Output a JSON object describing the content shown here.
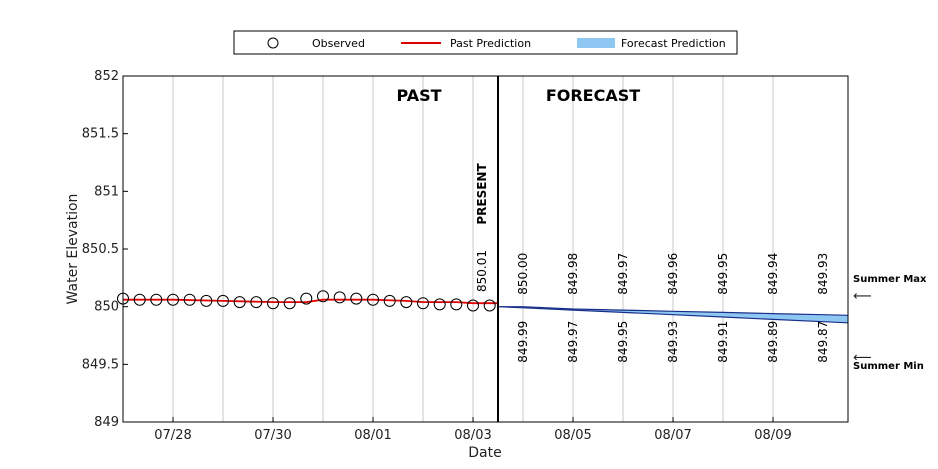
{
  "chart_data": {
    "type": "line",
    "xlabel": "Date",
    "ylabel": "Water Elevation",
    "ylim": [
      849,
      852
    ],
    "yticks": [
      "849",
      "849.5",
      "850",
      "850.5",
      "851",
      "851.5",
      "852"
    ],
    "xlim": [
      "07/27",
      "08/10 12:00"
    ],
    "xticks": [
      "07/28",
      "07/30",
      "08/01",
      "08/03",
      "08/05",
      "08/07",
      "08/09"
    ],
    "grid": "vertical",
    "legend": {
      "placement": "top",
      "entries": [
        {
          "label": "Observed",
          "marker": "open-circle"
        },
        {
          "label": "Past Prediction",
          "marker": "line",
          "color": "#e00000"
        },
        {
          "label": "Forecast Prediction",
          "marker": "band",
          "color": "#8ec8f2"
        }
      ]
    },
    "annotations": {
      "past": "PAST",
      "forecast": "FORECAST",
      "present": "PRESENT",
      "present_date": "08/03 12:00",
      "present_value": "850.01"
    },
    "observed": {
      "x": [
        "07/27 00:00",
        "07/27 08:00",
        "07/27 16:00",
        "07/28 00:00",
        "07/28 08:00",
        "07/28 16:00",
        "07/29 00:00",
        "07/29 08:00",
        "07/29 16:00",
        "07/30 00:00",
        "07/30 08:00",
        "07/30 16:00",
        "07/31 00:00",
        "07/31 08:00",
        "07/31 16:00",
        "08/01 00:00",
        "08/01 08:00",
        "08/01 16:00",
        "08/02 00:00",
        "08/02 08:00",
        "08/02 16:00",
        "08/03 00:00",
        "08/03 08:00"
      ],
      "y": [
        850.07,
        850.06,
        850.06,
        850.06,
        850.06,
        850.05,
        850.05,
        850.04,
        850.04,
        850.03,
        850.03,
        850.07,
        850.09,
        850.08,
        850.07,
        850.06,
        850.05,
        850.04,
        850.03,
        850.02,
        850.02,
        850.01,
        850.01
      ]
    },
    "past_prediction": {
      "x": [
        "07/27 00:00",
        "07/28 00:00",
        "07/29 00:00",
        "07/30 00:00",
        "07/30 16:00",
        "07/31 00:00",
        "07/31 16:00",
        "08/01 00:00",
        "08/01 16:00",
        "08/02 00:00",
        "08/02 16:00",
        "08/03 00:00",
        "08/03 12:00"
      ],
      "y": [
        850.06,
        850.06,
        850.05,
        850.04,
        850.04,
        850.06,
        850.06,
        850.06,
        850.05,
        850.04,
        850.04,
        850.03,
        850.03
      ]
    },
    "forecast": {
      "x": [
        "08/03 12:00",
        "08/04",
        "08/05",
        "08/06",
        "08/07",
        "08/08",
        "08/09",
        "08/10",
        "08/10 12:00"
      ],
      "upper": [
        850.0,
        850.0,
        849.98,
        849.97,
        849.96,
        849.95,
        849.94,
        849.93,
        849.925
      ],
      "lower": [
        850.0,
        849.99,
        849.97,
        849.95,
        849.93,
        849.91,
        849.89,
        849.87,
        849.86
      ]
    },
    "forecast_labels": {
      "dates": [
        "08/04",
        "08/05",
        "08/06",
        "08/07",
        "08/08",
        "08/09",
        "08/10"
      ],
      "upper": [
        "850.00",
        "849.98",
        "849.97",
        "849.96",
        "849.95",
        "849.94",
        "849.93"
      ],
      "lower": [
        "849.99",
        "849.97",
        "849.95",
        "849.93",
        "849.91",
        "849.89",
        "849.87"
      ]
    },
    "summer_levels": {
      "max_label": "Summer Max",
      "min_label": "Summer Min",
      "max_value": 850.1,
      "min_value": 849.57
    }
  }
}
